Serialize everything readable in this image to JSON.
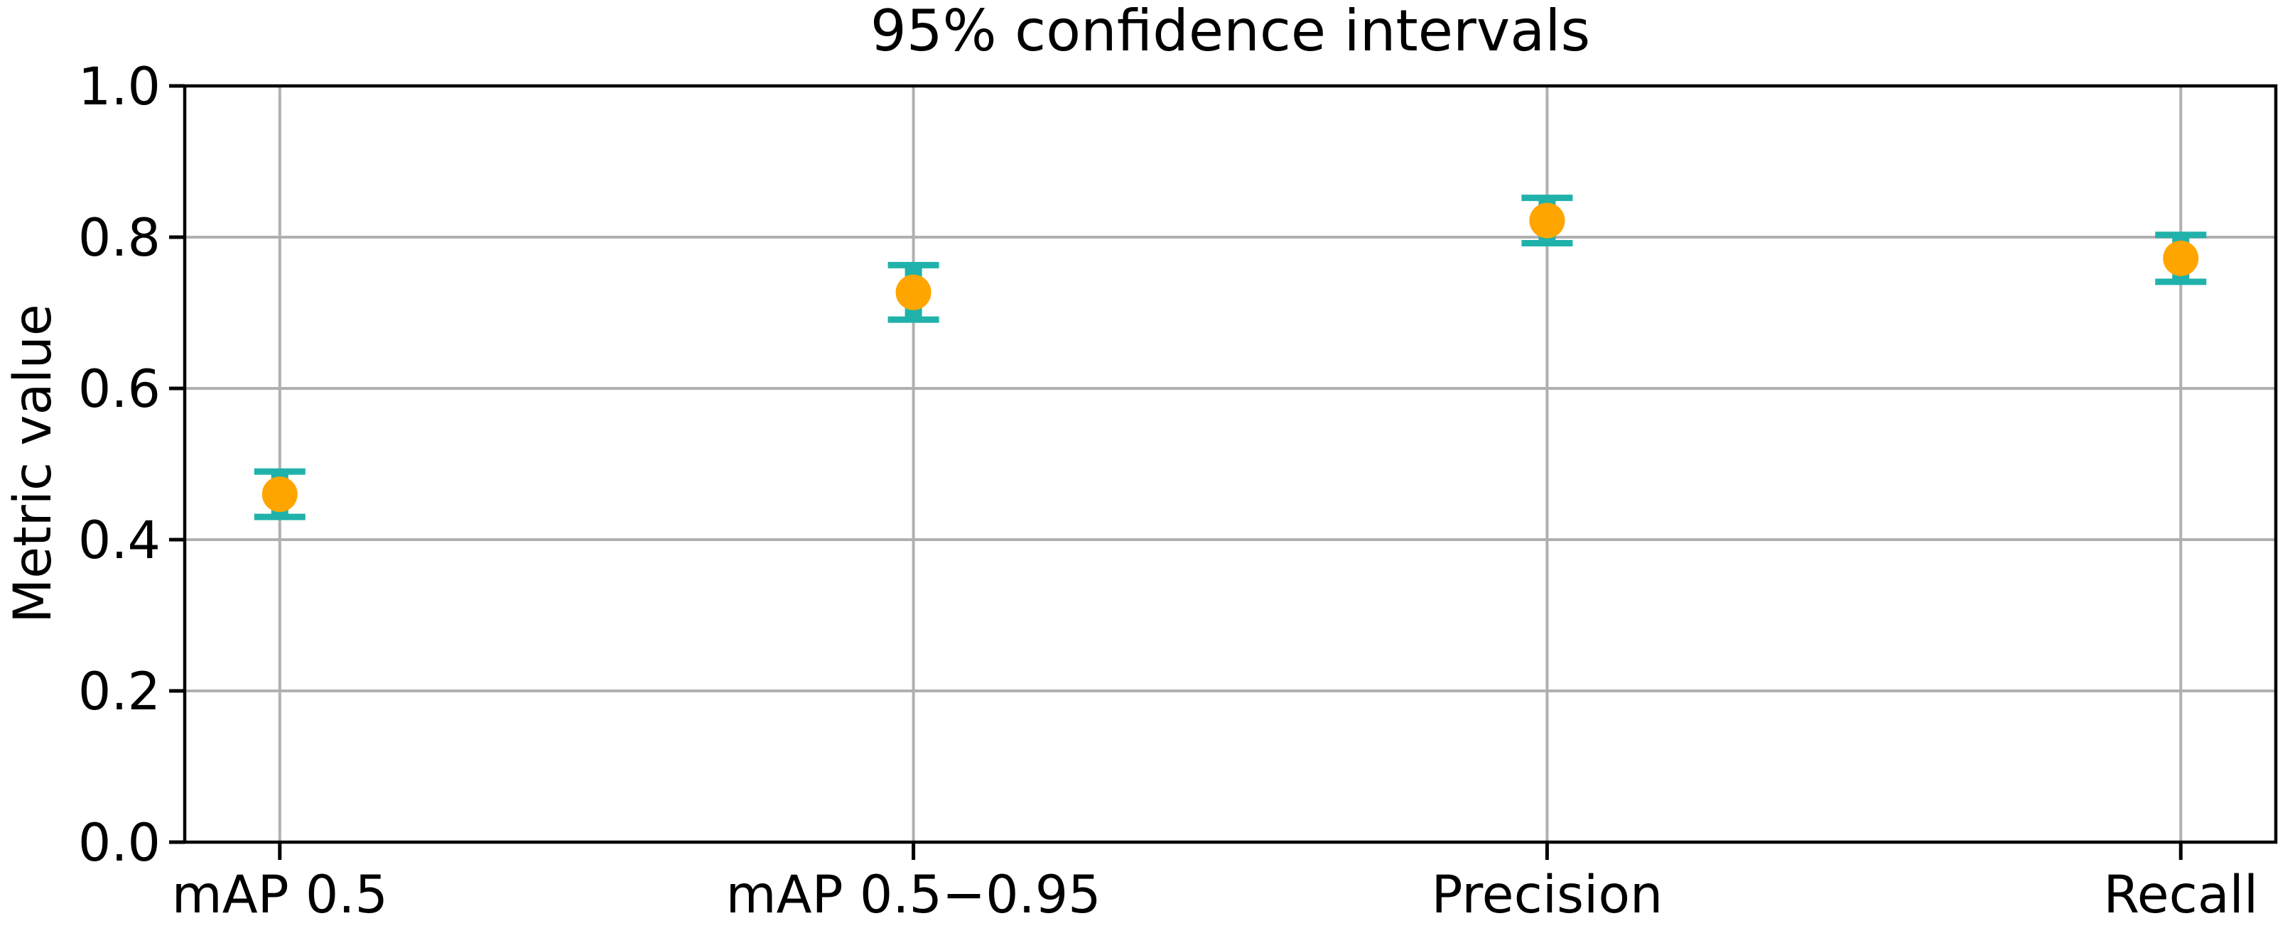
{
  "chart_data": {
    "type": "scatter",
    "subtype": "point-estimates-with-error-bars",
    "title": "95% confidence intervals",
    "xlabel": "",
    "ylabel": "Metric value",
    "categories": [
      "mAP 0.5",
      "mAP 0.5−0.95",
      "Precision",
      "Recall"
    ],
    "values": [
      0.46,
      0.727,
      0.822,
      0.772
    ],
    "ci_low": [
      0.43,
      0.691,
      0.792,
      0.741
    ],
    "ci_high": [
      0.49,
      0.763,
      0.852,
      0.803
    ],
    "confidence_level": "95%",
    "ylim": [
      0.0,
      1.0
    ],
    "yticks": [
      0.0,
      0.2,
      0.4,
      0.6,
      0.8,
      1.0
    ],
    "ytick_labels": [
      "0.0",
      "0.2",
      "0.4",
      "0.6",
      "0.8",
      "1.0"
    ],
    "grid": true,
    "legend": "none",
    "colors": {
      "marker": "#FFA500",
      "errorbar": "#20B2AA",
      "grid": "#b0b0b0",
      "spine": "#000000",
      "text": "#000000",
      "background": "#ffffff"
    }
  }
}
